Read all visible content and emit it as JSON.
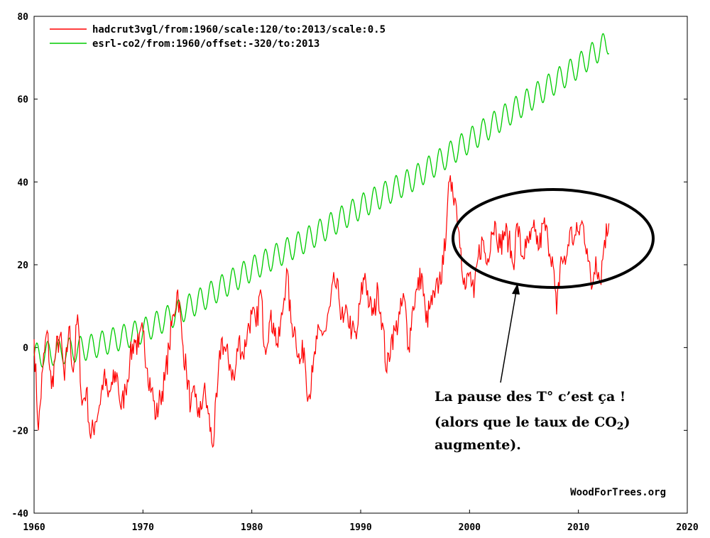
{
  "chart_data": {
    "type": "line",
    "x_range": [
      1960,
      2020
    ],
    "y_range": [
      -40,
      80
    ],
    "x_ticks": [
      "1960",
      "1970",
      "1980",
      "1990",
      "2000",
      "2010",
      "2020"
    ],
    "y_ticks": [
      "80",
      "60",
      "40",
      "20",
      "0",
      "-20",
      "-40"
    ],
    "grid": false,
    "legend_placement": "top-left",
    "series": [
      {
        "name": "hadcrut3vgl/from:1960/scale:120/to:2013/scale:0.5",
        "color": "#ff0000",
        "x": [
          1960.0,
          1960.4,
          1960.8,
          1961.2,
          1961.6,
          1962.0,
          1962.4,
          1962.8,
          1963.2,
          1963.6,
          1964.0,
          1964.4,
          1964.8,
          1965.2,
          1965.6,
          1966.0,
          1966.4,
          1966.8,
          1967.2,
          1967.6,
          1968.0,
          1968.4,
          1968.8,
          1969.2,
          1969.6,
          1970.0,
          1970.4,
          1970.8,
          1971.2,
          1971.6,
          1972.0,
          1972.4,
          1972.8,
          1973.2,
          1973.6,
          1974.0,
          1974.4,
          1974.8,
          1975.2,
          1975.6,
          1976.0,
          1976.4,
          1976.8,
          1977.2,
          1977.6,
          1978.0,
          1978.4,
          1978.8,
          1979.2,
          1979.6,
          1980.0,
          1980.4,
          1980.8,
          1981.2,
          1981.6,
          1982.0,
          1982.4,
          1982.8,
          1983.2,
          1983.6,
          1984.0,
          1984.4,
          1984.8,
          1985.2,
          1985.6,
          1986.0,
          1986.4,
          1986.8,
          1987.2,
          1987.6,
          1988.0,
          1988.4,
          1988.8,
          1989.2,
          1989.6,
          1990.0,
          1990.4,
          1990.8,
          1991.2,
          1991.6,
          1992.0,
          1992.4,
          1992.8,
          1993.2,
          1993.6,
          1994.0,
          1994.4,
          1994.8,
          1995.2,
          1995.6,
          1996.0,
          1996.4,
          1996.8,
          1997.2,
          1997.6,
          1998.0,
          1998.4,
          1998.8,
          1999.2,
          1999.6,
          2000.0,
          2000.4,
          2000.8,
          2001.2,
          2001.6,
          2002.0,
          2002.4,
          2002.8,
          2003.2,
          2003.6,
          2004.0,
          2004.4,
          2004.8,
          2005.2,
          2005.6,
          2006.0,
          2006.4,
          2006.8,
          2007.2,
          2007.6,
          2008.0,
          2008.4,
          2008.8,
          2009.2,
          2009.6,
          2010.0,
          2010.4,
          2010.8,
          2011.2,
          2011.6,
          2012.0,
          2012.4,
          2012.8
        ],
        "values": [
          2,
          -20,
          -5,
          4,
          -10,
          -1,
          3,
          -8,
          5,
          -6,
          8,
          -14,
          -10,
          -22,
          -18,
          -14,
          -7,
          -12,
          -9,
          -6,
          -15,
          -10,
          -3,
          2,
          0,
          4,
          -5,
          -10,
          -17,
          -12,
          -8,
          0,
          8,
          14,
          2,
          -6,
          -14,
          -12,
          -17,
          -10,
          -16,
          -24,
          -12,
          2,
          -1,
          -4,
          -8,
          2,
          -2,
          4,
          8,
          5,
          14,
          0,
          6,
          6,
          0,
          8,
          19,
          6,
          4,
          -4,
          0,
          -12,
          -6,
          2,
          4,
          4,
          10,
          16,
          12,
          6,
          8,
          4,
          2,
          12,
          18,
          10,
          8,
          14,
          6,
          -6,
          2,
          4,
          8,
          12,
          0,
          10,
          14,
          18,
          6,
          10,
          12,
          16,
          20,
          36,
          40,
          34,
          24,
          14,
          18,
          12,
          22,
          26,
          20,
          28,
          30,
          24,
          28,
          26,
          20,
          30,
          22,
          24,
          26,
          28,
          24,
          30,
          26,
          22,
          8,
          22,
          20,
          28,
          26,
          28,
          30,
          24,
          14,
          22,
          16,
          26,
          30
        ]
      },
      {
        "name": "esrl-co2/from:1960/offset:-320/to:2013",
        "color": "#00cc00",
        "x_start": 1960.0,
        "x_end": 2012.8,
        "trend_knots_x": [
          1960,
          1965,
          1970,
          1975,
          1980,
          1985,
          1990,
          1995,
          2000,
          2005,
          2010,
          2012.8
        ],
        "trend_knots_y": [
          -2,
          0,
          4,
          11,
          19,
          26,
          34,
          41,
          50,
          59,
          68,
          74
        ],
        "seasonal_amplitude": 3
      }
    ]
  },
  "labels": {
    "watermark": "WoodForTrees.org",
    "annotation_line1": "La pause des T° c’est ça !",
    "annotation_line2_prefix": "(alors que le taux de CO",
    "annotation_line2_sub": "2",
    "annotation_line3": "augmente)."
  }
}
